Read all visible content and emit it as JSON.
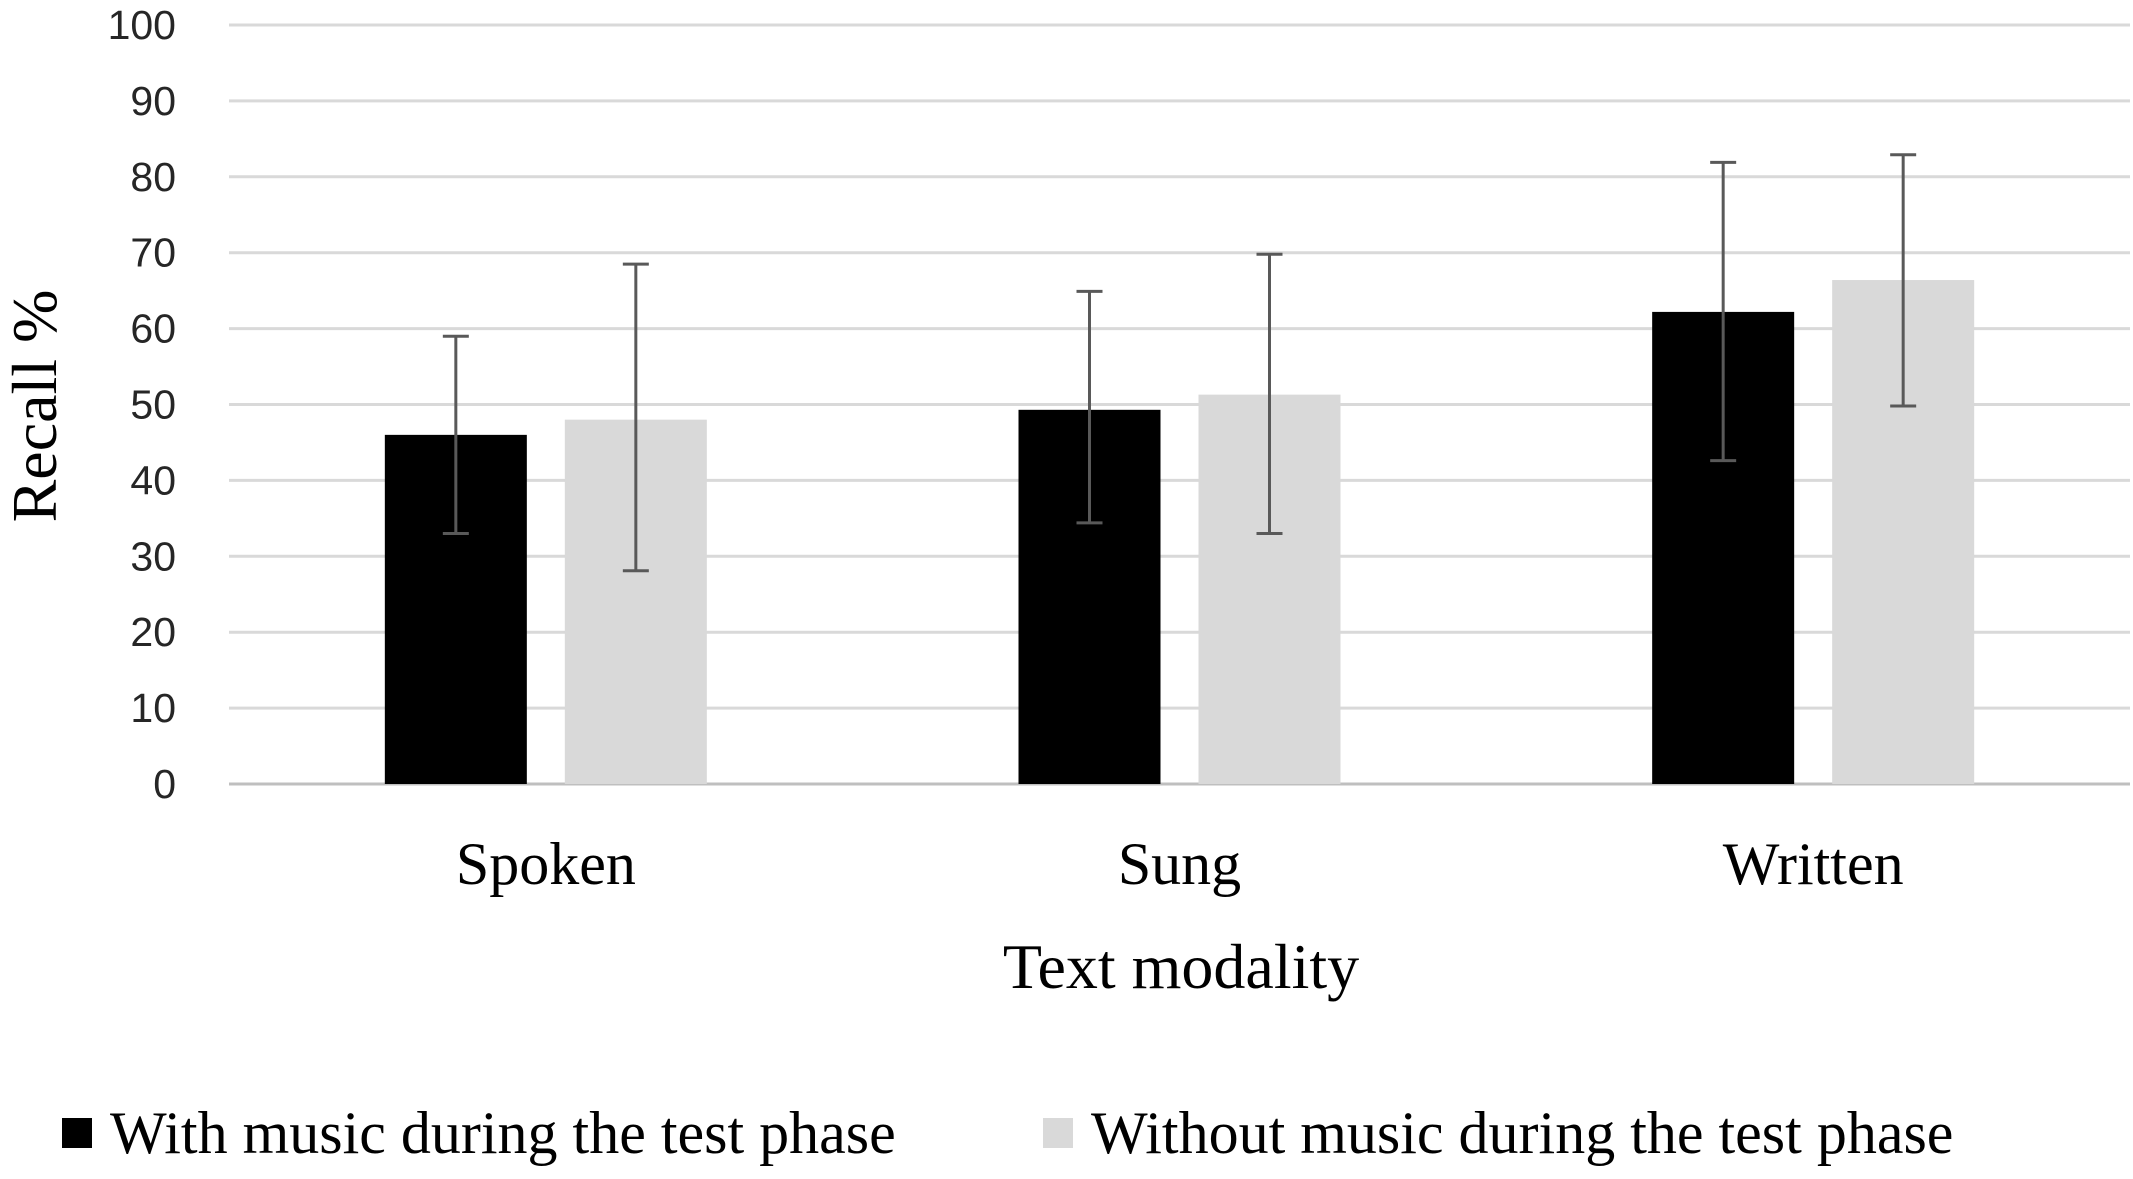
{
  "chart_data": {
    "type": "bar",
    "title": "",
    "xlabel": "Text modality",
    "ylabel": "Recall %",
    "categories": [
      "Spoken",
      "Sung",
      "Written"
    ],
    "ylim": [
      0,
      100
    ],
    "yticks": [
      "0",
      "10",
      "20",
      "30",
      "40",
      "50",
      "60",
      "70",
      "80",
      "90",
      "100"
    ],
    "grid": true,
    "legend_position": "bottom",
    "series": [
      {
        "name": "With music during the test phase",
        "color": "#000000",
        "values": [
          46,
          49.3,
          62.2
        ],
        "error_low": [
          33,
          34.4,
          42.6
        ],
        "error_high": [
          59,
          64.9,
          81.9
        ]
      },
      {
        "name": "Without music during the test phase",
        "color": "#d9d9d9",
        "values": [
          48,
          51.3,
          66.4
        ],
        "error_low": [
          28.1,
          33,
          49.8
        ],
        "error_high": [
          68.5,
          69.8,
          82.9
        ]
      }
    ]
  }
}
